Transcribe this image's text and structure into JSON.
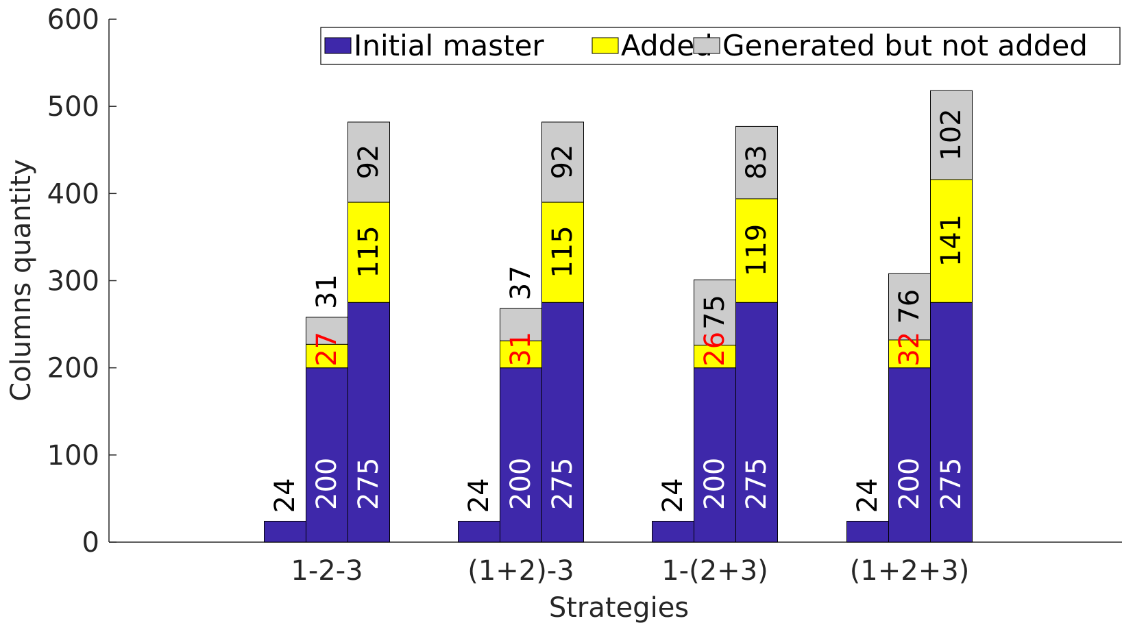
{
  "chart_data": {
    "type": "bar",
    "stacked": true,
    "xlabel": "Strategies",
    "ylabel": "Columns quantity",
    "ylim": [
      0,
      600
    ],
    "yticks": [
      "0",
      "100",
      "200",
      "300",
      "400",
      "500",
      "600"
    ],
    "categories": [
      "1-2-3",
      "(1+2)-3",
      "1-(2+3)",
      "(1+2+3)"
    ],
    "bars_per_category": 3,
    "legend": {
      "position": "top-right",
      "entries": [
        {
          "name": "Initial master",
          "color": "#3e28aa"
        },
        {
          "name": "Added",
          "color": "#ffff00"
        },
        {
          "name": "Generated but not added",
          "color": "#cccccc"
        }
      ]
    },
    "series": [
      {
        "name": "Initial master",
        "color": "#3e28aa",
        "values": [
          [
            24,
            200,
            275
          ],
          [
            24,
            200,
            275
          ],
          [
            24,
            200,
            275
          ],
          [
            24,
            200,
            275
          ]
        ]
      },
      {
        "name": "Added",
        "color": "#ffff00",
        "values": [
          [
            0,
            27,
            115
          ],
          [
            0,
            31,
            115
          ],
          [
            0,
            26,
            119
          ],
          [
            0,
            32,
            141
          ]
        ]
      },
      {
        "name": "Generated but not added",
        "color": "#cccccc",
        "values": [
          [
            0,
            31,
            92
          ],
          [
            0,
            37,
            92
          ],
          [
            0,
            75,
            83
          ],
          [
            0,
            76,
            102
          ]
        ]
      }
    ],
    "bar_labels": [
      [
        [
          {
            "text": "24",
            "color": "#000000"
          }
        ],
        [
          {
            "text": "200",
            "color": "#ffffff"
          },
          {
            "text": "27",
            "color": "#ff0000"
          },
          {
            "text": "31",
            "color": "#000000"
          }
        ],
        [
          {
            "text": "275",
            "color": "#ffffff"
          },
          {
            "text": "115",
            "color": "#000000"
          },
          {
            "text": "92",
            "color": "#000000"
          }
        ]
      ],
      [
        [
          {
            "text": "24",
            "color": "#000000"
          }
        ],
        [
          {
            "text": "200",
            "color": "#ffffff"
          },
          {
            "text": "31",
            "color": "#ff0000"
          },
          {
            "text": "37",
            "color": "#000000"
          }
        ],
        [
          {
            "text": "275",
            "color": "#ffffff"
          },
          {
            "text": "115",
            "color": "#000000"
          },
          {
            "text": "92",
            "color": "#000000"
          }
        ]
      ],
      [
        [
          {
            "text": "24",
            "color": "#000000"
          }
        ],
        [
          {
            "text": "200",
            "color": "#ffffff"
          },
          {
            "text": "26",
            "color": "#ff0000"
          },
          {
            "text": "75",
            "color": "#000000"
          }
        ],
        [
          {
            "text": "275",
            "color": "#ffffff"
          },
          {
            "text": "119",
            "color": "#000000"
          },
          {
            "text": "83",
            "color": "#000000"
          }
        ]
      ],
      [
        [
          {
            "text": "24",
            "color": "#000000"
          }
        ],
        [
          {
            "text": "200",
            "color": "#ffffff"
          },
          {
            "text": "32",
            "color": "#ff0000"
          },
          {
            "text": "76",
            "color": "#000000"
          }
        ],
        [
          {
            "text": "275",
            "color": "#ffffff"
          },
          {
            "text": "141",
            "color": "#000000"
          },
          {
            "text": "102",
            "color": "#000000"
          }
        ]
      ]
    ]
  }
}
